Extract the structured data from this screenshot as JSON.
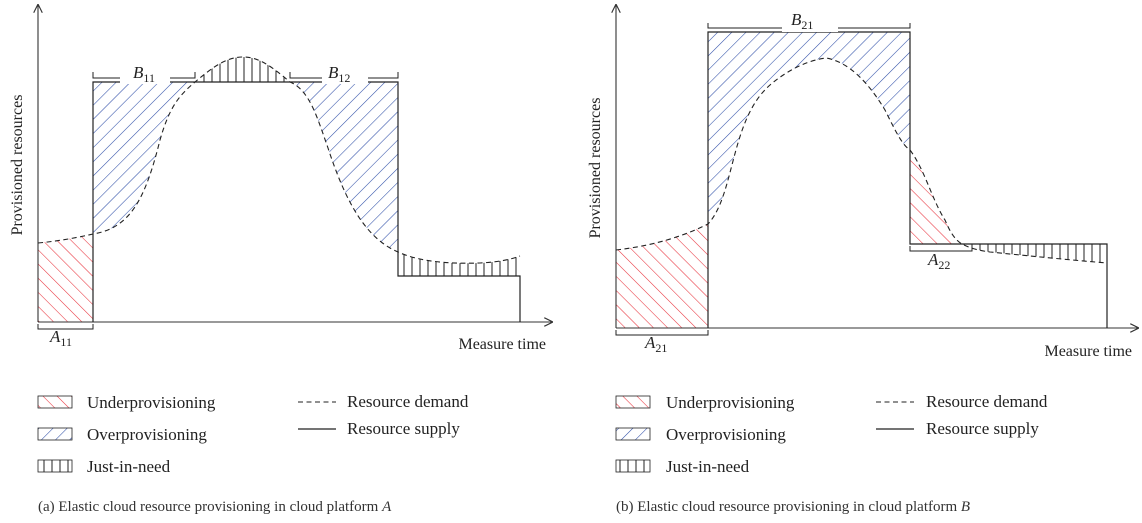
{
  "panels": [
    {
      "y_label": "Provisioned resources",
      "x_label": "Measure time",
      "labels": {
        "under": {
          "base": "A",
          "sub": "11"
        },
        "over1": {
          "base": "B",
          "sub": "11"
        },
        "over2": {
          "base": "B",
          "sub": "12"
        }
      },
      "caption_prefix": "(a)  Elastic cloud resource provisioning in cloud platform ",
      "caption_platform": "A"
    },
    {
      "y_label": "Provisioned resources",
      "x_label": "Measure time",
      "labels": {
        "over1": {
          "base": "B",
          "sub": "21"
        },
        "under": {
          "base": "A",
          "sub": "22"
        },
        "under0": {
          "base": "A",
          "sub": "21"
        }
      },
      "caption_prefix": "(b)  Elastic cloud resource provisioning in cloud platform ",
      "caption_platform": "B"
    }
  ],
  "legend": {
    "underprovisioning": "Underprovisioning",
    "overprovisioning": "Overprovisioning",
    "just_in_need": "Just-in-need",
    "resource_demand": "Resource demand",
    "resource_supply": "Resource supply"
  },
  "colors": {
    "underprovisioning": "#e8323c",
    "overprovisioning": "#2f4fa8",
    "just_in_need": "#222222"
  }
}
